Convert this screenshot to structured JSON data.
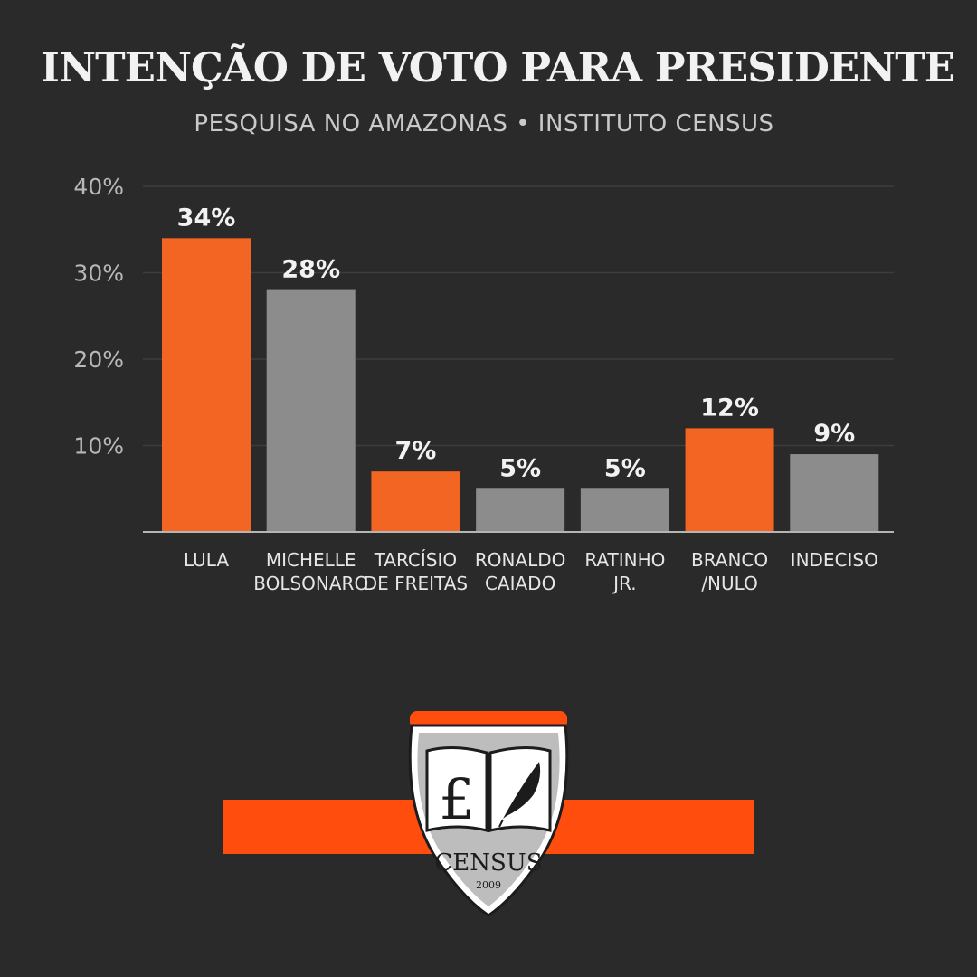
{
  "header": {
    "title": "INTENÇÃO DE VOTO PARA PRESIDENTE",
    "subtitle": "PESQUISA NO AMAZONAS • INSTITUTO CENSUS"
  },
  "colors": {
    "background": "#2a2a2a",
    "highlight": "#f26522",
    "neutral": "#8c8c8c",
    "logo_orange": "#ff4d0d"
  },
  "chart_data": {
    "type": "bar",
    "title": "INTENÇÃO DE VOTO PARA PRESIDENTE",
    "subtitle": "PESQUISA NO AMAZONAS • INSTITUTO CENSUS",
    "categories": [
      [
        "LULA"
      ],
      [
        "MICHELLE",
        "BOLSONARO"
      ],
      [
        "TARCÍSIO",
        "DE FREITAS"
      ],
      [
        "RONALDO",
        "CAIADO"
      ],
      [
        "RATINHO",
        "JR."
      ],
      [
        "BRANCO",
        "/NULO"
      ],
      [
        "INDECISO"
      ]
    ],
    "values": [
      34,
      28,
      7,
      5,
      5,
      12,
      9
    ],
    "value_labels": [
      "34%",
      "28%",
      "7%",
      "5%",
      "5%",
      "12%",
      "9%"
    ],
    "highlight": [
      true,
      false,
      true,
      false,
      false,
      true,
      false
    ],
    "yticks": [
      10,
      20,
      30,
      40
    ],
    "ytick_labels": [
      "10%",
      "20%",
      "30%",
      "40%"
    ],
    "ylim": [
      0,
      40
    ],
    "grid": true,
    "xlabel": "",
    "ylabel": ""
  },
  "logo": {
    "name": "CENSUS",
    "year": "2009",
    "emblem": "open-book-quill"
  }
}
